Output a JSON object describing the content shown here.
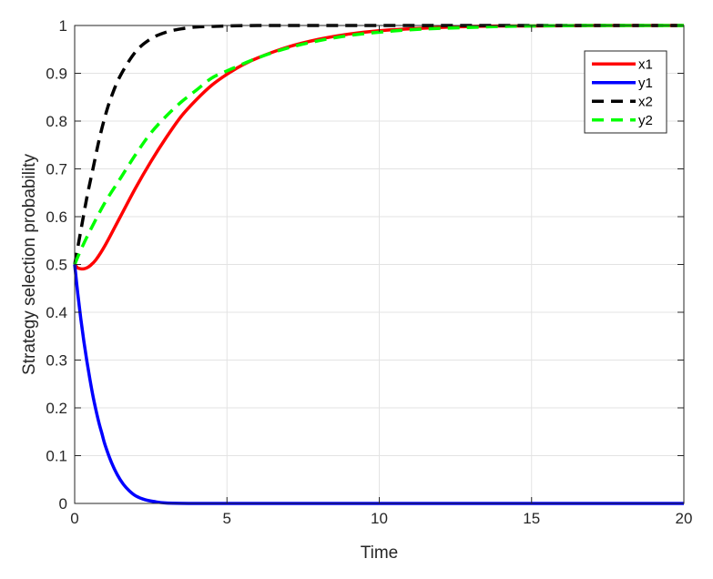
{
  "chart_data": {
    "type": "line",
    "title": "",
    "xlabel": "Time",
    "ylabel": "Strategy selection probability",
    "xlim": [
      0,
      20
    ],
    "ylim": [
      0,
      1
    ],
    "xticks": [
      0,
      5,
      10,
      15,
      20
    ],
    "yticks": [
      0,
      0.1,
      0.2,
      0.3,
      0.4,
      0.5,
      0.6,
      0.7,
      0.8,
      0.9,
      1
    ],
    "grid": true,
    "legend_position": "top-right",
    "series": [
      {
        "name": "x1",
        "color": "#ff0000",
        "style": "solid",
        "x": [
          0,
          0.1,
          0.2,
          0.3,
          0.4,
          0.5,
          0.7,
          1,
          1.5,
          2,
          2.5,
          3,
          3.5,
          4,
          4.5,
          5,
          5.5,
          6,
          7,
          8,
          9,
          10,
          11,
          12,
          13,
          14,
          15,
          17,
          20
        ],
        "y": [
          0.5,
          0.493,
          0.491,
          0.491,
          0.493,
          0.497,
          0.51,
          0.54,
          0.6,
          0.66,
          0.715,
          0.765,
          0.81,
          0.845,
          0.875,
          0.898,
          0.917,
          0.932,
          0.955,
          0.971,
          0.982,
          0.989,
          0.993,
          0.996,
          0.998,
          0.999,
          0.999,
          1.0,
          1.0
        ]
      },
      {
        "name": "y1",
        "color": "#0000ff",
        "style": "solid",
        "x": [
          0,
          0.1,
          0.2,
          0.3,
          0.4,
          0.5,
          0.6,
          0.7,
          0.8,
          0.9,
          1,
          1.2,
          1.4,
          1.6,
          1.8,
          2,
          2.3,
          2.6,
          3,
          4,
          5,
          10,
          15,
          20
        ],
        "y": [
          0.5,
          0.44,
          0.387,
          0.34,
          0.298,
          0.26,
          0.225,
          0.195,
          0.168,
          0.145,
          0.122,
          0.087,
          0.06,
          0.04,
          0.026,
          0.016,
          0.008,
          0.004,
          0.001,
          0.0,
          0.0,
          0.0,
          0.0,
          0.0
        ]
      },
      {
        "name": "x2",
        "color": "#000000",
        "style": "dashed",
        "x": [
          0,
          0.2,
          0.4,
          0.6,
          0.8,
          1,
          1.2,
          1.5,
          2,
          2.5,
          3,
          3.5,
          4,
          4.5,
          5,
          6,
          8,
          10,
          15,
          20
        ],
        "y": [
          0.5,
          0.57,
          0.64,
          0.7,
          0.76,
          0.81,
          0.85,
          0.895,
          0.945,
          0.972,
          0.986,
          0.993,
          0.997,
          0.998,
          0.999,
          1.0,
          1.0,
          1.0,
          1.0,
          1.0
        ]
      },
      {
        "name": "y2",
        "color": "#00ff00",
        "style": "dashed",
        "x": [
          0,
          0.2,
          0.5,
          1,
          1.5,
          2,
          2.5,
          3,
          3.5,
          4,
          4.5,
          5,
          6,
          7,
          8,
          9,
          10,
          11,
          12,
          13,
          14,
          15,
          17,
          20
        ],
        "y": [
          0.5,
          0.53,
          0.57,
          0.63,
          0.68,
          0.73,
          0.775,
          0.81,
          0.84,
          0.865,
          0.89,
          0.905,
          0.932,
          0.953,
          0.968,
          0.979,
          0.986,
          0.991,
          0.994,
          0.996,
          0.998,
          0.999,
          1.0,
          1.0
        ]
      }
    ]
  }
}
